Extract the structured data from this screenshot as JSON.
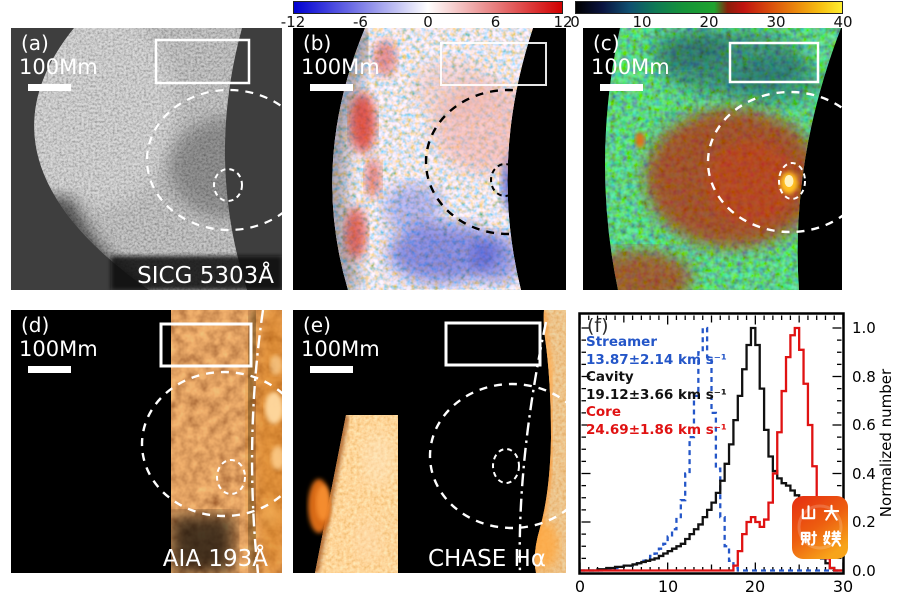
{
  "colorbars": [
    {
      "name": "doppler",
      "ticks": [
        "-12",
        "-6",
        "0",
        "6",
        "12"
      ],
      "color_left": "#0000d0",
      "color_mid": "#ffffff",
      "color_right": "#d00000"
    },
    {
      "name": "nonthermal-velocity",
      "ticks": [
        "0",
        "10",
        "20",
        "30",
        "40"
      ],
      "color_left": "#000000",
      "color_mid": "#1fa32e",
      "color_right": "#ffee30"
    }
  ],
  "panels": {
    "a": {
      "label": "(a)",
      "scalebar": "100Mm",
      "instrument": "SICG 5303Å"
    },
    "b": {
      "label": "(b)",
      "scalebar": "100Mm"
    },
    "c": {
      "label": "(c)",
      "scalebar": "100Mm"
    },
    "d": {
      "label": "(d)",
      "scalebar": "100Mm",
      "instrument": "AIA 193Å"
    },
    "e": {
      "label": "(e)",
      "scalebar": "100Mm",
      "instrument": "CHASE Hα"
    },
    "f": {
      "label": "(f)",
      "legend": [
        {
          "name": "Streamer",
          "value": "13.87±2.14 km s⁻¹",
          "color": "#2456c8"
        },
        {
          "name": "Cavity",
          "value": "19.12±3.66 km s⁻¹",
          "color": "#111111"
        },
        {
          "name": "Core",
          "value": "24.69±1.86 km s⁻¹",
          "color": "#e01212"
        }
      ],
      "ylabel": "Normalized number",
      "yticks": [
        "1.0",
        "0.8",
        "0.6",
        "0.4",
        "0.2",
        "0.0"
      ],
      "xticks": [
        "0",
        "10",
        "20",
        "30"
      ]
    }
  },
  "watermark": {
    "text": "山大融媒",
    "color_top": "#e52d12",
    "color_bottom": "#f7a41a"
  },
  "chart_data": {
    "type": "histogram-step",
    "title": "",
    "xlabel": "",
    "ylabel": "Normalized number",
    "xlim": [
      0,
      30
    ],
    "ylim": [
      0,
      1.0
    ],
    "grid": false,
    "legend_position": "upper-left",
    "x0": 0,
    "dx": 0.5,
    "series": [
      {
        "name": "Streamer",
        "color": "#2456c8",
        "style": "dashed",
        "mean": 13.87,
        "sigma": 2.14,
        "units": "km/s",
        "y": [
          0,
          0,
          0,
          0,
          0,
          0.005,
          0.005,
          0.01,
          0.01,
          0.015,
          0.02,
          0.02,
          0.03,
          0.03,
          0.04,
          0.05,
          0.06,
          0.07,
          0.09,
          0.11,
          0.14,
          0.17,
          0.22,
          0.29,
          0.4,
          0.55,
          0.72,
          0.9,
          1.0,
          0.88,
          0.65,
          0.42,
          0.22,
          0.1,
          0.04,
          0.01,
          0,
          0,
          0,
          0,
          0,
          0,
          0,
          0,
          0,
          0,
          0,
          0,
          0,
          0,
          0,
          0,
          0,
          0,
          0,
          0,
          0,
          0,
          0,
          0,
          0
        ]
      },
      {
        "name": "Cavity",
        "color": "#111111",
        "style": "solid",
        "mean": 19.12,
        "sigma": 3.66,
        "units": "km/s",
        "y": [
          0,
          0,
          0,
          0,
          0.005,
          0.005,
          0.01,
          0.01,
          0.015,
          0.015,
          0.02,
          0.02,
          0.025,
          0.03,
          0.035,
          0.04,
          0.045,
          0.05,
          0.06,
          0.07,
          0.08,
          0.09,
          0.1,
          0.11,
          0.13,
          0.15,
          0.17,
          0.19,
          0.22,
          0.25,
          0.28,
          0.32,
          0.37,
          0.44,
          0.52,
          0.62,
          0.72,
          0.83,
          0.93,
          1.0,
          0.93,
          0.75,
          0.58,
          0.47,
          0.41,
          0.38,
          0.36,
          0.35,
          0.33,
          0.31,
          0.28,
          0.24,
          0.19,
          0.14,
          0.09,
          0.05,
          0.03,
          0.01,
          0,
          0,
          0
        ]
      },
      {
        "name": "Core",
        "color": "#e01212",
        "style": "solid",
        "mean": 24.69,
        "sigma": 1.86,
        "units": "km/s",
        "y": [
          0,
          0,
          0,
          0,
          0,
          0,
          0,
          0,
          0,
          0,
          0,
          0,
          0,
          0,
          0,
          0,
          0,
          0,
          0,
          0,
          0,
          0,
          0,
          0,
          0,
          0,
          0,
          0,
          0,
          0,
          0,
          0,
          0,
          0,
          0,
          0.02,
          0.08,
          0.15,
          0.2,
          0.22,
          0.2,
          0.18,
          0.21,
          0.28,
          0.4,
          0.57,
          0.74,
          0.88,
          0.97,
          1.0,
          0.91,
          0.77,
          0.6,
          0.43,
          0.27,
          0.13,
          0.05,
          0.01,
          0,
          0,
          0
        ]
      }
    ]
  }
}
